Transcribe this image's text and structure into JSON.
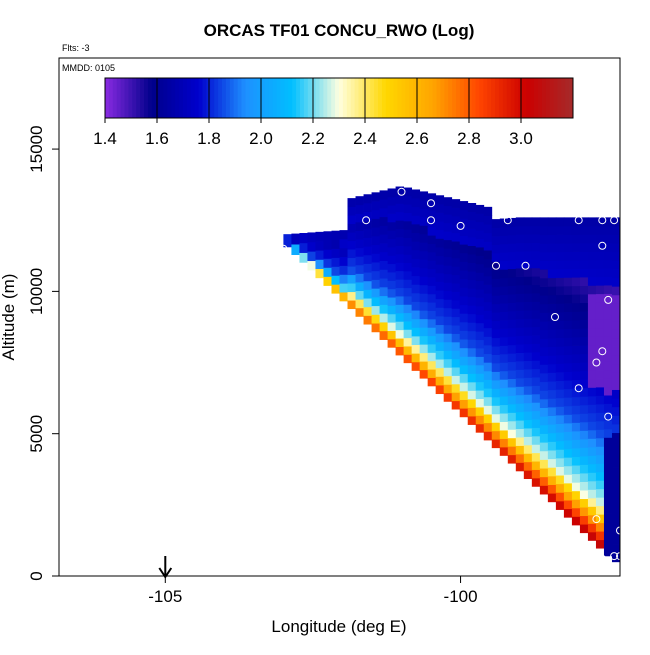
{
  "chart_data": {
    "type": "heatmap",
    "title": "ORCAS TF01 CONCU_RWO (Log)",
    "annotations": {
      "flts": "Flts: -3",
      "mmdd": "MMDD: 0105"
    },
    "xlabel": "Longitude (deg E)",
    "ylabel": "Altitude (m)",
    "xlim": [
      -106.8,
      -97.3
    ],
    "ylim": [
      0,
      18200
    ],
    "xticks": [
      -105,
      -100
    ],
    "xtick_labels": [
      "-105",
      "-100"
    ],
    "yticks": [
      0,
      5000,
      10000,
      15000
    ],
    "ytick_labels": [
      "0",
      "5000",
      "10000",
      "15000"
    ],
    "colorbar": {
      "range": [
        1.4,
        3.2
      ],
      "ticks": [
        1.4,
        1.6,
        1.8,
        2.0,
        2.2,
        2.4,
        2.6,
        2.8,
        3.0
      ],
      "tick_labels": [
        "1.4",
        "1.6",
        "1.8",
        "2.0",
        "2.2",
        "2.4",
        "2.6",
        "2.8",
        "3.0"
      ],
      "colors": [
        "#8a2be2",
        "#00008b",
        "#0000cd",
        "#1e90ff",
        "#00bfff",
        "#ffffe0",
        "#ffd700",
        "#ffa500",
        "#ff4500",
        "#cc0000",
        "#a52a2a"
      ]
    },
    "arrow_longitude": -105,
    "wedge": {
      "apex": [
        -103,
        11700
      ],
      "top_edge_start": [
        -103,
        12000
      ],
      "top": [
        -99,
        12600
      ],
      "right_lon": -97.3,
      "bottom": [
        -97.4,
        500
      ]
    },
    "points": [
      [
        -103.0,
        11500
      ],
      [
        -101.7,
        13700
      ],
      [
        -101.0,
        13500
      ],
      [
        -100.5,
        13100
      ],
      [
        -102.0,
        12500
      ],
      [
        -101.6,
        12500
      ],
      [
        -100.5,
        12500
      ],
      [
        -100.0,
        12300
      ],
      [
        -99.2,
        12500
      ],
      [
        -98.0,
        12500
      ],
      [
        -97.4,
        12500
      ],
      [
        -97.6,
        12500
      ],
      [
        -99.4,
        10900
      ],
      [
        -98.9,
        10900
      ],
      [
        -97.6,
        11600
      ],
      [
        -97.5,
        9700
      ],
      [
        -98.4,
        9100
      ],
      [
        -97.6,
        7900
      ],
      [
        -97.7,
        7500
      ],
      [
        -98.0,
        6600
      ],
      [
        -97.5,
        5600
      ],
      [
        -97.7,
        2000
      ],
      [
        -97.3,
        1600
      ],
      [
        -97.4,
        700
      ],
      [
        -97.6,
        600
      ],
      [
        -97.3,
        700
      ],
      [
        -97.2,
        700
      ]
    ]
  }
}
